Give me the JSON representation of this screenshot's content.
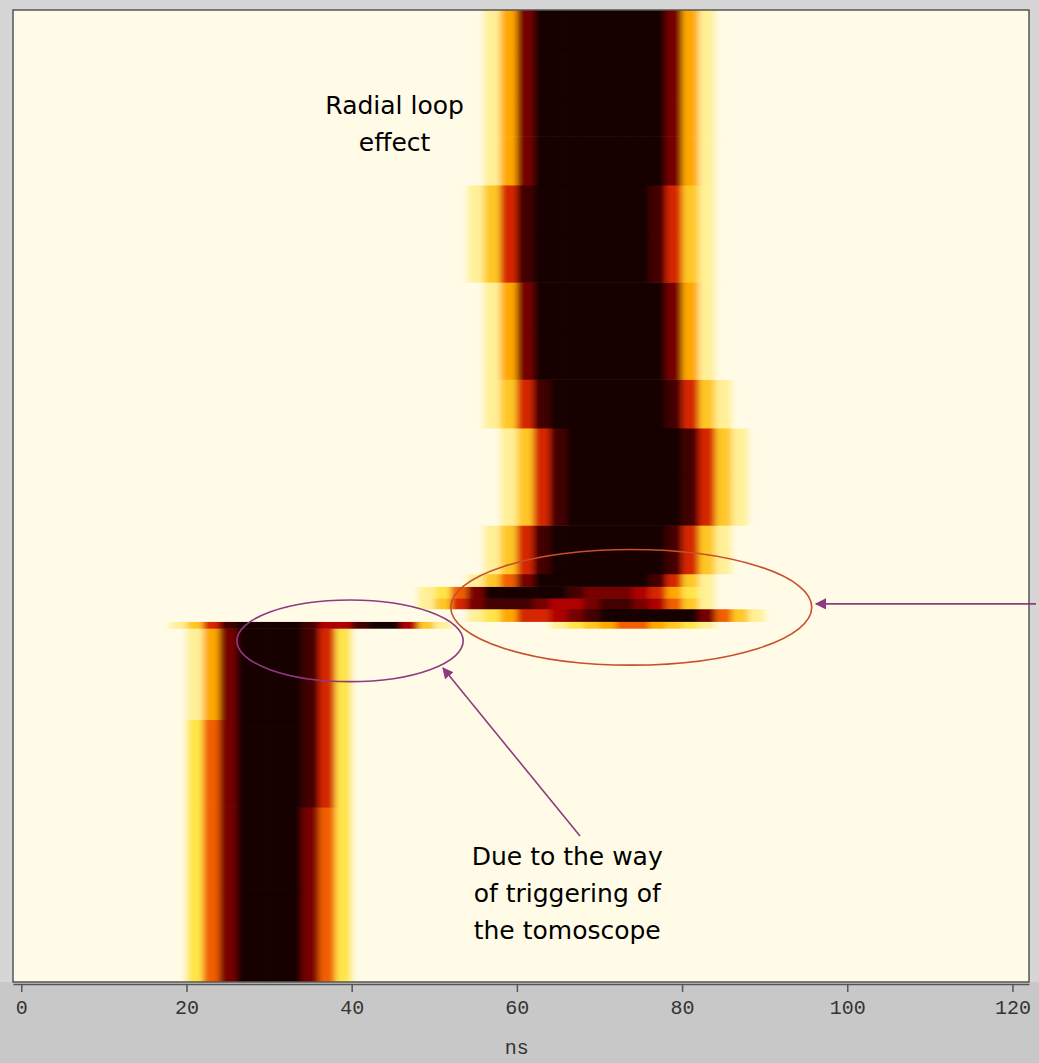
{
  "chart_data": {
    "type": "heatmap",
    "x_label": "ns",
    "xlim": [
      -1,
      122
    ],
    "xticks": [
      0,
      20,
      40,
      60,
      80,
      100,
      120
    ],
    "ylim": [
      0,
      100
    ],
    "tick_labels": "x",
    "zlim": [
      0,
      10
    ],
    "x_bins": [
      14,
      16,
      18,
      20,
      22,
      24,
      26,
      28,
      30,
      32,
      34,
      36,
      38,
      40,
      42,
      44,
      46,
      48,
      50,
      52,
      54,
      56,
      58,
      60,
      62,
      64,
      66,
      68,
      70,
      72,
      74,
      76,
      78,
      80,
      82,
      84,
      86,
      88,
      90,
      92
    ],
    "y_bins": [
      0,
      9,
      18,
      27,
      36.4,
      37.1,
      38.4,
      39.5,
      40.7,
      42,
      47,
      52,
      57,
      62,
      67,
      72,
      77,
      82,
      87,
      91,
      96,
      100
    ],
    "z": [
      [
        0,
        0,
        0,
        2,
        5,
        8,
        10,
        10,
        10,
        10,
        8,
        5,
        2,
        0,
        0,
        0,
        0,
        0,
        0,
        0,
        0,
        0,
        0,
        0,
        0,
        0,
        0,
        0,
        0,
        0,
        0,
        0,
        0,
        0,
        0,
        0,
        0,
        0,
        0
      ],
      [
        0,
        0,
        0,
        2,
        5,
        8,
        10,
        10,
        10,
        10,
        8,
        5,
        2,
        0,
        0,
        0,
        0,
        0,
        0,
        0,
        0,
        0,
        0,
        0,
        0,
        0,
        0,
        0,
        0,
        0,
        0,
        0,
        0,
        0,
        0,
        0,
        0,
        0,
        0
      ],
      [
        0,
        0,
        0,
        2,
        5,
        8,
        10,
        10,
        10,
        10,
        9,
        6,
        2,
        0,
        0,
        0,
        0,
        0,
        0,
        0,
        0,
        0,
        0,
        0,
        0,
        0,
        0,
        0,
        0,
        0,
        0,
        0,
        0,
        0,
        0,
        0,
        0,
        0,
        0
      ],
      [
        0,
        0,
        0,
        1,
        4,
        8,
        10,
        10,
        10,
        10,
        9,
        6,
        2,
        0,
        0,
        0,
        0,
        0,
        0,
        0,
        0,
        0,
        0,
        0,
        0,
        0,
        0,
        0,
        0,
        0,
        0,
        0,
        0,
        0,
        0,
        0,
        0,
        0,
        0
      ],
      [
        0,
        0,
        1,
        3,
        6,
        9,
        10,
        10,
        10,
        10,
        9,
        7,
        7,
        9,
        10,
        10,
        7,
        3,
        1,
        0,
        0,
        0,
        0,
        0,
        0,
        1,
        2,
        3,
        4,
        5,
        5,
        4,
        3,
        2,
        1,
        0,
        0,
        0,
        0
      ],
      [
        0,
        0,
        0,
        0,
        0,
        0,
        0,
        0,
        0,
        0,
        0,
        0,
        0,
        0,
        0,
        0,
        0,
        0,
        0,
        0,
        1,
        2,
        4,
        6,
        6,
        7,
        8,
        9,
        10,
        10,
        10,
        10,
        10,
        10,
        8,
        5,
        3,
        1,
        0
      ],
      [
        0,
        0,
        0,
        0,
        0,
        0,
        0,
        0,
        0,
        0,
        0,
        0,
        0,
        0,
        0,
        0,
        0,
        1,
        3,
        6,
        8,
        9,
        9,
        9,
        8,
        7,
        7,
        8,
        9,
        9,
        8,
        7,
        5,
        3,
        1,
        0,
        0,
        0,
        0
      ],
      [
        0,
        0,
        0,
        0,
        0,
        0,
        0,
        0,
        0,
        0,
        0,
        0,
        0,
        0,
        0,
        0,
        0,
        1,
        2,
        5,
        8,
        10,
        10,
        10,
        10,
        10,
        9,
        8,
        8,
        8,
        7,
        6,
        4,
        2,
        1,
        0,
        0,
        0,
        0
      ],
      [
        0,
        0,
        0,
        0,
        0,
        0,
        0,
        0,
        0,
        0,
        0,
        0,
        0,
        0,
        0,
        0,
        0,
        0,
        0,
        0,
        1,
        3,
        5,
        8,
        10,
        10,
        10,
        10,
        10,
        10,
        10,
        9,
        6,
        3,
        1,
        0,
        0,
        0,
        0
      ],
      [
        0,
        0,
        0,
        0,
        0,
        0,
        0,
        0,
        0,
        0,
        0,
        0,
        0,
        0,
        0,
        0,
        0,
        0,
        0,
        0,
        0,
        1,
        3,
        6,
        9,
        10,
        10,
        10,
        10,
        10,
        10,
        10,
        9,
        6,
        3,
        1,
        0,
        0,
        0
      ],
      [
        0,
        0,
        0,
        0,
        0,
        0,
        0,
        0,
        0,
        0,
        0,
        0,
        0,
        0,
        0,
        0,
        0,
        0,
        0,
        0,
        0,
        0,
        1,
        3,
        6,
        9,
        10,
        10,
        10,
        10,
        10,
        10,
        10,
        9,
        6,
        3,
        1,
        0,
        0
      ],
      [
        0,
        0,
        0,
        0,
        0,
        0,
        0,
        0,
        0,
        0,
        0,
        0,
        0,
        0,
        0,
        0,
        0,
        0,
        0,
        0,
        0,
        0,
        1,
        3,
        6,
        9,
        10,
        10,
        10,
        10,
        10,
        10,
        10,
        9,
        6,
        3,
        1,
        0,
        0
      ],
      [
        0,
        0,
        0,
        0,
        0,
        0,
        0,
        0,
        0,
        0,
        0,
        0,
        0,
        0,
        0,
        0,
        0,
        0,
        0,
        0,
        0,
        1,
        3,
        6,
        9,
        10,
        10,
        10,
        10,
        10,
        10,
        10,
        9,
        6,
        3,
        1,
        0,
        0,
        0
      ],
      [
        0,
        0,
        0,
        0,
        0,
        0,
        0,
        0,
        0,
        0,
        0,
        0,
        0,
        0,
        0,
        0,
        0,
        0,
        0,
        0,
        0,
        1,
        4,
        8,
        10,
        10,
        10,
        10,
        10,
        10,
        10,
        10,
        8,
        4,
        1,
        0,
        0,
        0,
        0
      ],
      [
        0,
        0,
        0,
        0,
        0,
        0,
        0,
        0,
        0,
        0,
        0,
        0,
        0,
        0,
        0,
        0,
        0,
        0,
        0,
        0,
        0,
        1,
        4,
        8,
        10,
        10,
        10,
        10,
        10,
        10,
        10,
        10,
        8,
        4,
        1,
        0,
        0,
        0,
        0
      ],
      [
        0,
        0,
        0,
        0,
        0,
        0,
        0,
        0,
        0,
        0,
        0,
        0,
        0,
        0,
        0,
        0,
        0,
        0,
        0,
        0,
        1,
        3,
        6,
        9,
        10,
        10,
        10,
        10,
        10,
        10,
        10,
        9,
        6,
        3,
        1,
        0,
        0,
        0,
        0
      ],
      [
        0,
        0,
        0,
        0,
        0,
        0,
        0,
        0,
        0,
        0,
        0,
        0,
        0,
        0,
        0,
        0,
        0,
        0,
        0,
        0,
        1,
        3,
        6,
        9,
        10,
        10,
        10,
        10,
        10,
        10,
        10,
        9,
        6,
        3,
        1,
        0,
        0,
        0,
        0
      ],
      [
        0,
        0,
        0,
        0,
        0,
        0,
        0,
        0,
        0,
        0,
        0,
        0,
        0,
        0,
        0,
        0,
        0,
        0,
        0,
        0,
        0,
        1,
        4,
        8,
        10,
        10,
        10,
        10,
        10,
        10,
        10,
        10,
        8,
        4,
        1,
        0,
        0,
        0,
        0
      ],
      [
        0,
        0,
        0,
        0,
        0,
        0,
        0,
        0,
        0,
        0,
        0,
        0,
        0,
        0,
        0,
        0,
        0,
        0,
        0,
        0,
        0,
        1,
        4,
        8,
        10,
        10,
        10,
        10,
        10,
        10,
        10,
        10,
        8,
        4,
        1,
        0,
        0,
        0,
        0
      ],
      [
        0,
        0,
        0,
        0,
        0,
        0,
        0,
        0,
        0,
        0,
        0,
        0,
        0,
        0,
        0,
        0,
        0,
        0,
        0,
        0,
        0,
        1,
        4,
        8,
        10,
        10,
        10,
        10,
        10,
        10,
        10,
        10,
        8,
        4,
        1,
        0,
        0,
        0,
        0
      ],
      [
        0,
        0,
        0,
        0,
        0,
        0,
        0,
        0,
        0,
        0,
        0,
        0,
        0,
        0,
        0,
        0,
        0,
        0,
        0,
        0,
        0,
        1,
        4,
        8,
        10,
        10,
        10,
        10,
        10,
        10,
        10,
        10,
        8,
        4,
        1,
        0,
        0,
        0,
        0
      ]
    ],
    "annotations": [
      {
        "lines": [
          "Radial loop",
          "effect"
        ],
        "x": 45.2,
        "y": 88.3
      },
      {
        "lines": [
          "Due to the way",
          "of triggering of",
          "the tomoscope"
        ],
        "x": 66.1,
        "y": 9.2
      }
    ]
  }
}
